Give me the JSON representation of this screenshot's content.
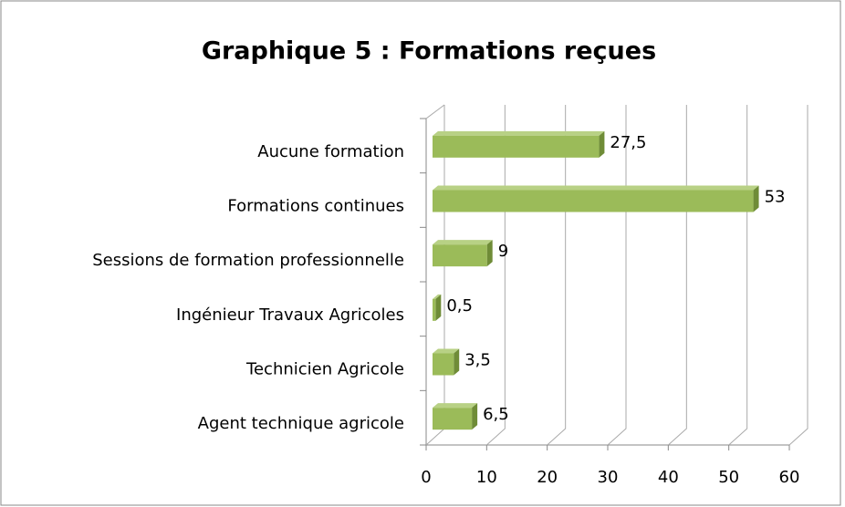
{
  "chart_data": {
    "type": "bar",
    "orientation": "horizontal",
    "title": "Graphique 5 : Formations reçues",
    "categories": [
      "Aucune formation",
      "Formations continues",
      "Sessions de formation professionnelle",
      "Ingénieur Travaux Agricoles",
      "Technicien Agricole",
      "Agent technique agricole"
    ],
    "values": [
      27.5,
      53,
      9,
      0.5,
      3.5,
      6.5
    ],
    "value_labels": [
      "27,5",
      "53",
      "9",
      "0,5",
      "3,5",
      "6,5"
    ],
    "color": "#9bbb59",
    "xlim": [
      0,
      60
    ],
    "xticks": [
      0,
      10,
      20,
      30,
      40,
      50,
      60
    ],
    "grid": true
  }
}
